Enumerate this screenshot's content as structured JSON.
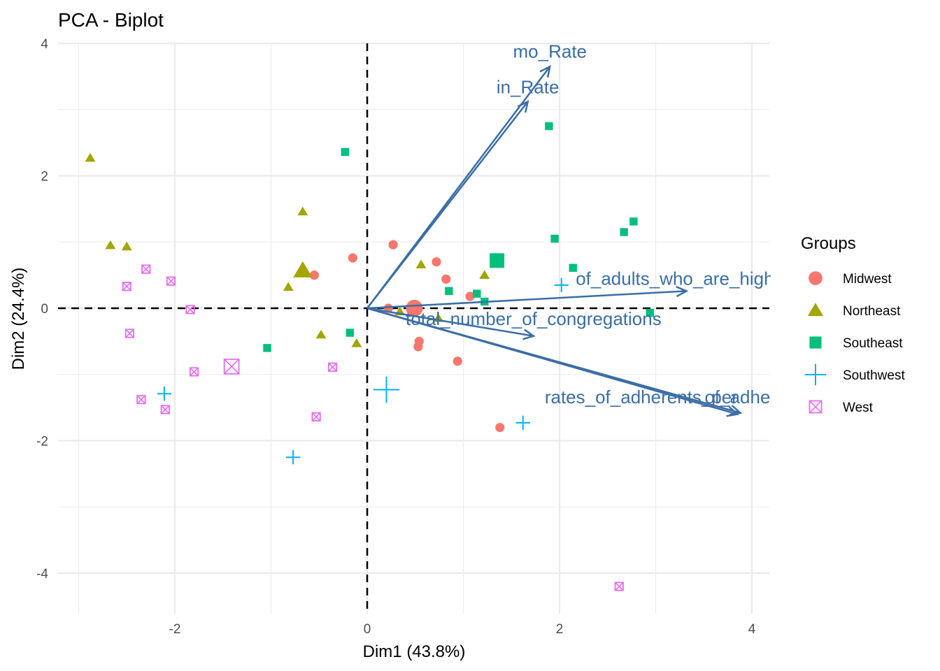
{
  "chart_data": {
    "type": "scatter",
    "subtype": "pca-biplot",
    "title": "PCA - Biplot",
    "xlabel": "Dim1 (43.8%)",
    "ylabel": "Dim2 (24.4%)",
    "xlim": [
      -3.0,
      4.15
    ],
    "ylim": [
      -4.6,
      4.0
    ],
    "x_ticks": [
      -2,
      0,
      2,
      4
    ],
    "y_ticks": [
      -4,
      -2,
      0,
      2,
      4
    ],
    "x_tick_labels": [
      "-2",
      "0",
      "2",
      "4"
    ],
    "y_tick_labels": [
      "-4",
      "-2",
      "0",
      "2",
      "4"
    ],
    "grid": true,
    "reference_lines": {
      "x": 0,
      "y": 0,
      "style": "dashed"
    },
    "legend": {
      "title": "Groups",
      "position": "right"
    },
    "groups": [
      {
        "name": "Midwest",
        "shape": "circle",
        "color": "#f8766d",
        "points": [
          [
            -0.55,
            0.5
          ],
          [
            -0.15,
            0.76
          ],
          [
            0.27,
            0.96
          ],
          [
            0.72,
            0.7
          ],
          [
            0.82,
            0.44
          ],
          [
            1.07,
            0.18
          ],
          [
            0.22,
            0.0
          ],
          [
            0.54,
            -0.5
          ],
          [
            0.53,
            -0.58
          ],
          [
            0.94,
            -0.8
          ],
          [
            1.38,
            -1.8
          ]
        ],
        "centroid": [
          0.49,
          0.0
        ]
      },
      {
        "name": "Northeast",
        "shape": "triangle",
        "color": "#a3a500",
        "points": [
          [
            -2.88,
            2.27
          ],
          [
            -2.67,
            0.95
          ],
          [
            -2.5,
            0.93
          ],
          [
            -0.67,
            1.46
          ],
          [
            -0.82,
            0.32
          ],
          [
            0.56,
            0.66
          ],
          [
            1.22,
            0.5
          ],
          [
            0.34,
            -0.05
          ],
          [
            0.74,
            -0.15
          ],
          [
            -0.48,
            -0.4
          ],
          [
            -0.11,
            -0.53
          ]
        ],
        "centroid": [
          -0.67,
          0.57
        ]
      },
      {
        "name": "Southeast",
        "shape": "square",
        "color": "#00bf7d",
        "points": [
          [
            -0.23,
            2.36
          ],
          [
            1.89,
            2.75
          ],
          [
            2.77,
            1.31
          ],
          [
            2.67,
            1.15
          ],
          [
            1.95,
            1.05
          ],
          [
            2.14,
            0.61
          ],
          [
            0.85,
            0.26
          ],
          [
            1.14,
            0.22
          ],
          [
            1.22,
            0.1
          ],
          [
            2.94,
            -0.07
          ],
          [
            -0.18,
            -0.37
          ],
          [
            -1.04,
            -0.6
          ]
        ],
        "centroid": [
          1.35,
          0.72
        ]
      },
      {
        "name": "Southwest",
        "shape": "plus",
        "color": "#00b0f6",
        "points": [
          [
            2.02,
            0.35
          ],
          [
            1.62,
            -1.73
          ],
          [
            -2.11,
            -1.29
          ],
          [
            -0.77,
            -2.25
          ]
        ],
        "centroid": [
          0.2,
          -1.23
        ]
      },
      {
        "name": "West",
        "shape": "boxcross",
        "color": "#e76bf3",
        "points": [
          [
            -2.3,
            0.59
          ],
          [
            -2.5,
            0.33
          ],
          [
            -2.04,
            0.41
          ],
          [
            -1.84,
            -0.02
          ],
          [
            -2.47,
            -0.38
          ],
          [
            -1.8,
            -0.96
          ],
          [
            -0.36,
            -0.89
          ],
          [
            -2.35,
            -1.38
          ],
          [
            -2.1,
            -1.53
          ],
          [
            -0.53,
            -1.64
          ],
          [
            2.62,
            -4.2
          ]
        ],
        "centroid": [
          -1.41,
          -0.88
        ]
      }
    ],
    "variables": [
      {
        "name": "mo_Rate",
        "x": 1.9,
        "y": 3.65,
        "label_x": 1.9,
        "label_y": 3.88
      },
      {
        "name": "in_Rate",
        "x": 1.67,
        "y": 3.12,
        "label_x": 1.67,
        "label_y": 3.34
      },
      {
        "name": "of_adults_who_are_highly_",
        "x": 3.32,
        "y": 0.26,
        "label_x": 3.32,
        "label_y": 0.45
      },
      {
        "name": "total_number_of_congregations",
        "x": 1.73,
        "y": -0.42,
        "label_x": 1.73,
        "label_y": -0.16
      },
      {
        "name": "rates_of_adherents_per",
        "x": 3.85,
        "y": -1.6,
        "label_x": 2.85,
        "label_y": -1.34
      },
      {
        "name": "of_adherents_per",
        "x": 3.88,
        "y": -1.58,
        "label_x": 4.25,
        "label_y": -1.34
      }
    ],
    "arrow_color": "#3a6ea5"
  }
}
